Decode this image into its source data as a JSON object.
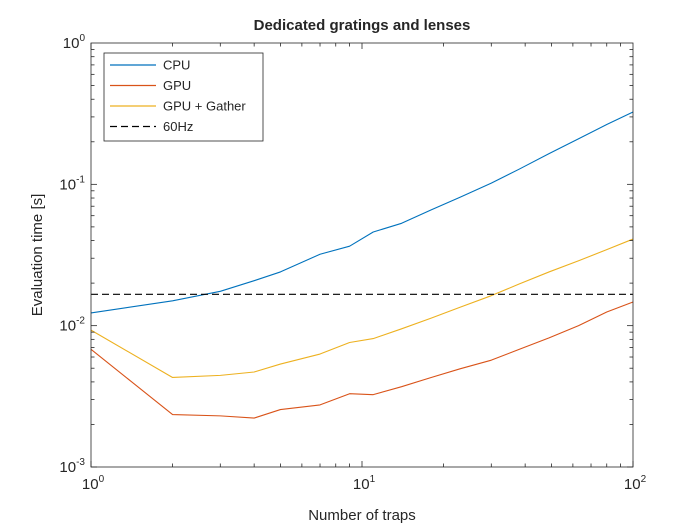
{
  "chart_data": {
    "type": "line",
    "title": "Dedicated gratings and lenses",
    "xlabel": "Number of traps",
    "ylabel": "Evaluation time [s]",
    "xscale": "log",
    "yscale": "log",
    "xlim": [
      1,
      100
    ],
    "ylim": [
      0.001,
      1
    ],
    "x_ticks": [
      {
        "base": "10",
        "exp": "0",
        "value": 1
      },
      {
        "base": "10",
        "exp": "1",
        "value": 10
      },
      {
        "base": "10",
        "exp": "2",
        "value": 100
      }
    ],
    "y_ticks": [
      {
        "base": "10",
        "exp": "-3",
        "value": 0.001
      },
      {
        "base": "10",
        "exp": "-2",
        "value": 0.01
      },
      {
        "base": "10",
        "exp": "-1",
        "value": 0.1
      },
      {
        "base": "10",
        "exp": "0",
        "value": 1
      }
    ],
    "grid": false,
    "legend_position": "top-left",
    "series": [
      {
        "name": "CPU",
        "color": "#0072BD",
        "dash": "solid",
        "x": [
          1,
          2,
          3,
          4,
          5,
          7,
          9,
          11,
          14,
          18,
          23,
          30,
          38,
          49,
          63,
          80,
          100
        ],
        "y": [
          0.0123,
          0.015,
          0.0175,
          0.0208,
          0.024,
          0.032,
          0.0365,
          0.046,
          0.053,
          0.066,
          0.081,
          0.102,
          0.128,
          0.165,
          0.21,
          0.265,
          0.325
        ]
      },
      {
        "name": "GPU",
        "color": "#D95319",
        "dash": "solid",
        "x": [
          1,
          2,
          3,
          4,
          5,
          7,
          9,
          11,
          14,
          18,
          23,
          30,
          38,
          49,
          63,
          80,
          100
        ],
        "y": [
          0.0068,
          0.00235,
          0.0023,
          0.00222,
          0.00255,
          0.00275,
          0.0033,
          0.00325,
          0.0037,
          0.0043,
          0.00495,
          0.0057,
          0.0068,
          0.0082,
          0.01,
          0.0125,
          0.0147
        ]
      },
      {
        "name": "GPU + Gather",
        "color": "#EDB120",
        "dash": "solid",
        "x": [
          1,
          2,
          3,
          4,
          5,
          7,
          9,
          11,
          14,
          18,
          23,
          30,
          38,
          49,
          63,
          80,
          100
        ],
        "y": [
          0.0093,
          0.0043,
          0.00445,
          0.0047,
          0.00535,
          0.0063,
          0.0076,
          0.0081,
          0.0095,
          0.0113,
          0.0135,
          0.0163,
          0.0197,
          0.024,
          0.0288,
          0.0345,
          0.041
        ]
      },
      {
        "name": "60Hz",
        "color": "#000000",
        "dash": "dashed",
        "x": [
          1,
          100
        ],
        "y": [
          0.01667,
          0.01667
        ]
      }
    ]
  }
}
